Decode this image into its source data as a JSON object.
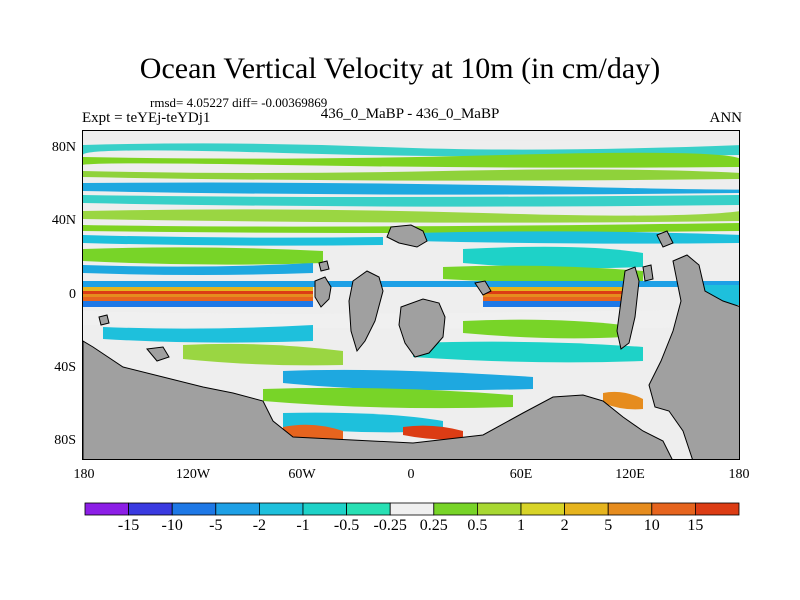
{
  "header": {
    "title": "Ocean Vertical Velocity at 10m (in cm/day)",
    "stats": "rmsd= 4.05227 diff= -0.00369869",
    "expt": "Expt = teYEj-teYDj1",
    "cases": "436_0_MaBP - 436_0_MaBP",
    "season": "ANN"
  },
  "map": {
    "y_ticks": [
      "80N",
      "40N",
      "0",
      "40S",
      "80S"
    ],
    "x_ticks": [
      "180",
      "120W",
      "60W",
      "0",
      "60E",
      "120E",
      "180"
    ],
    "land_color": "#a0a0a0",
    "bands": [
      {
        "lat_range": "85N-80N",
        "color": "#e6e6e6"
      },
      {
        "lat_range": "80N-75N",
        "color": "#38d0c8"
      },
      {
        "lat_range": "75N-70N",
        "color": "#7ed321"
      },
      {
        "lat_range": "60N-55N",
        "color": "#1ea8e0"
      },
      {
        "lat_range": "50N-45N",
        "color": "#9ad642"
      },
      {
        "lat_range": "equator",
        "color": "#e04020"
      }
    ]
  },
  "legend": {
    "labels": [
      "-15",
      "-10",
      "-5",
      "-2",
      "-1",
      "-0.5",
      "-0.25",
      "0.25",
      "0.5",
      "1",
      "2",
      "5",
      "10",
      "15"
    ],
    "colors": [
      "#8c1ee6",
      "#3a3ae0",
      "#1e78e6",
      "#1ea0e6",
      "#1ec0dc",
      "#1ed2c8",
      "#28e0b4",
      "#f0f0f0",
      "#78d428",
      "#a8d832",
      "#d8d428",
      "#e6b41e",
      "#e68c1e",
      "#e6641e",
      "#dc3c14"
    ]
  }
}
